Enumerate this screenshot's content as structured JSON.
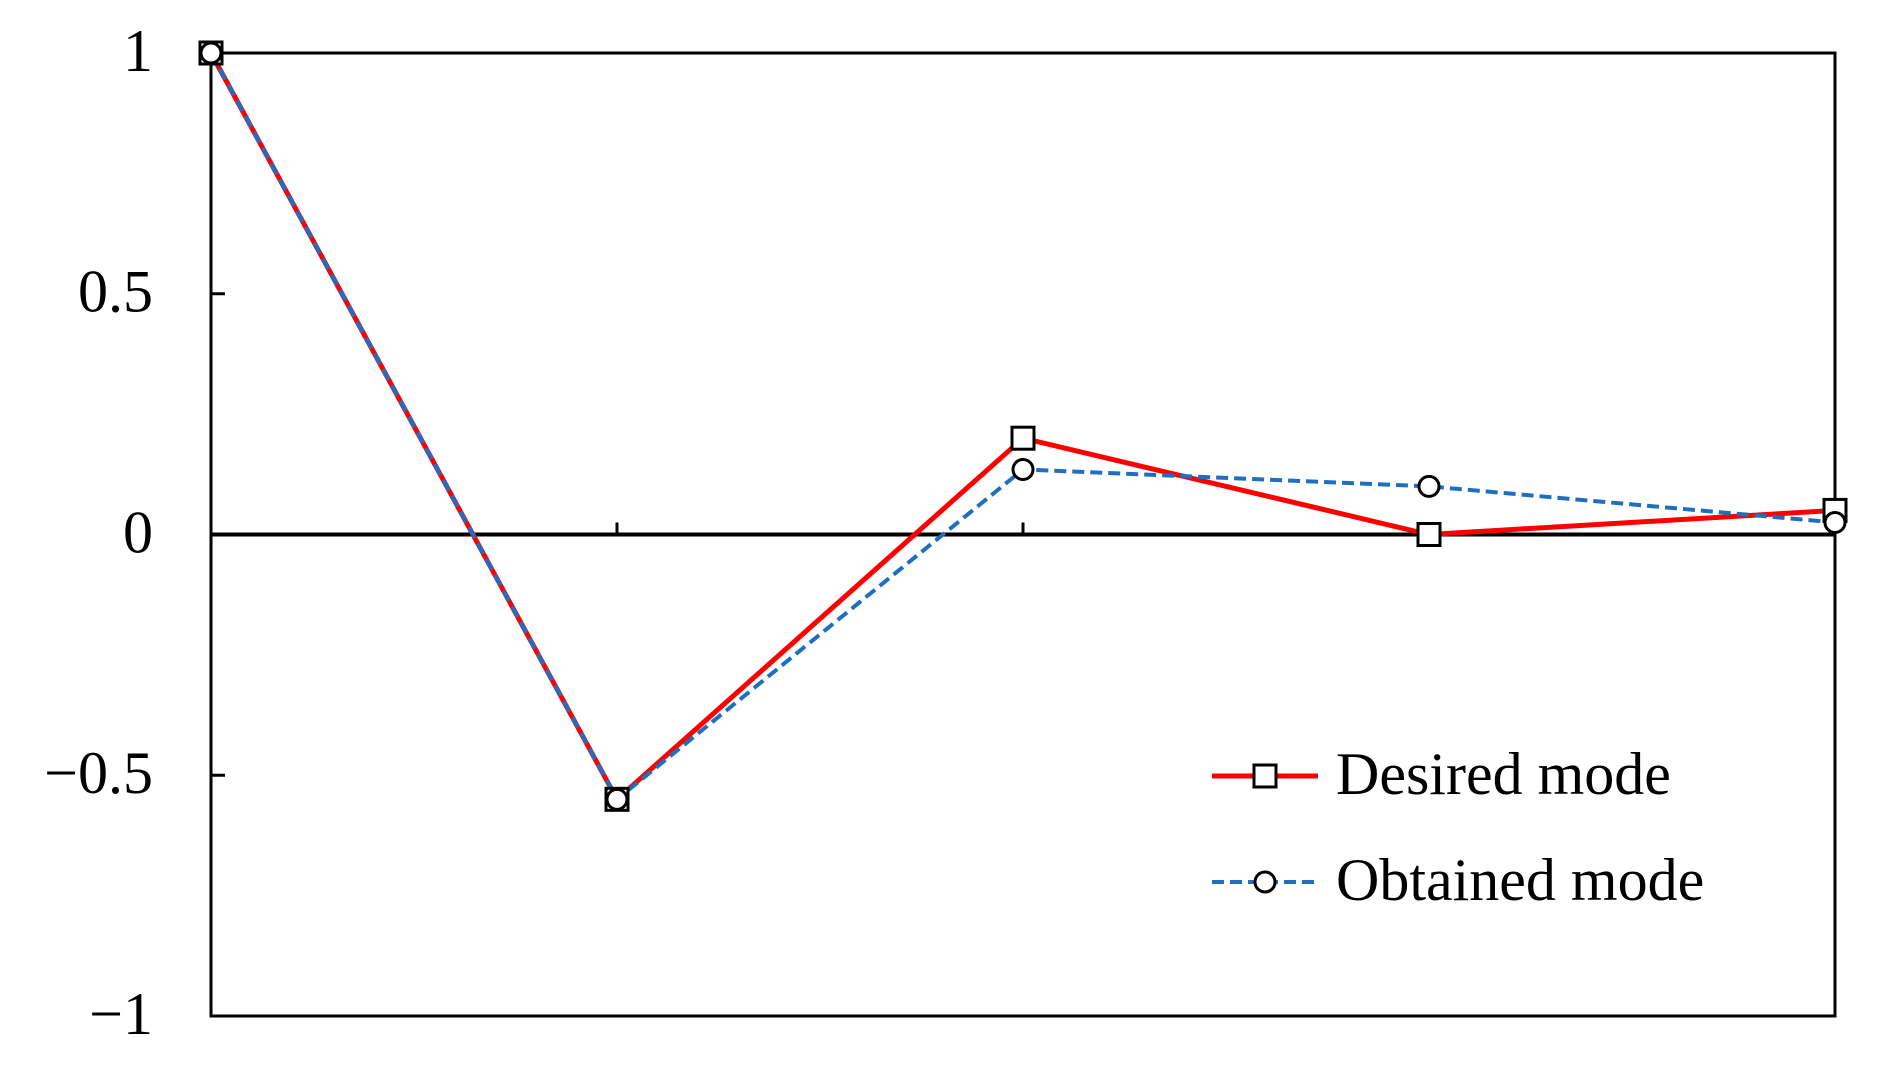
{
  "chart_data": {
    "type": "line",
    "categories": [
      null,
      null,
      null,
      null,
      null
    ],
    "series": [
      {
        "name": "Desired mode",
        "color": "#ff0000",
        "dash": "solid",
        "marker": "square",
        "values": [
          1,
          -0.55,
          0.2,
          0,
          0.05
        ]
      },
      {
        "name": "Obtained mode",
        "color": "#1f6fc0",
        "dash": "dashed",
        "marker": "circle",
        "values": [
          1,
          -0.55,
          0.135,
          0.1,
          0.025
        ]
      }
    ],
    "ylim": [
      -1,
      1
    ],
    "yticks": [
      {
        "value": -1,
        "label": "−1"
      },
      {
        "value": -0.5,
        "label": "−0.5"
      },
      0,
      0.5,
      1
    ],
    "legend": "lower right"
  }
}
